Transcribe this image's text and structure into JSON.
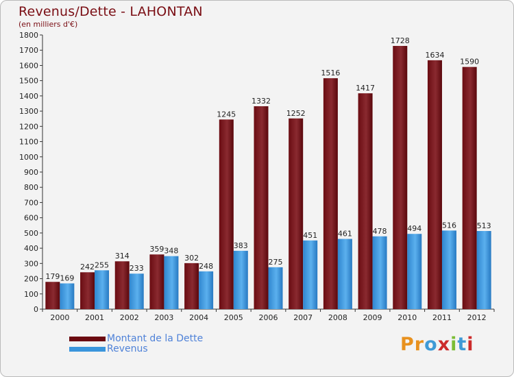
{
  "title": "Revenus/Dette - LAHONTAN",
  "subtitle": "(en milliers d'€)",
  "colors": {
    "debt": "#7a1016",
    "revenue": "#3a95dc",
    "title": "#7a0e14",
    "legend_text": "#4f82d8"
  },
  "legend": [
    {
      "label": "Montant de la Dette",
      "color": "#6b0a10"
    },
    {
      "label": "Revenus",
      "color": "#3a95dc"
    }
  ],
  "logo": {
    "letters": [
      "P",
      "r",
      "o",
      "x",
      "i",
      "t",
      "i"
    ],
    "colors": [
      "#e8911e",
      "#e8911e",
      "#3f9ad6",
      "#cc2b2b",
      "#7bbd34",
      "#3f9ad6",
      "#cc2b2b"
    ]
  },
  "chart_data": {
    "type": "bar",
    "title": "Revenus/Dette - LAHONTAN",
    "ylabel": "(en milliers d'€)",
    "xlabel": "",
    "categories": [
      "2000",
      "2001",
      "2002",
      "2003",
      "2004",
      "2005",
      "2006",
      "2007",
      "2008",
      "2009",
      "2010",
      "2011",
      "2012"
    ],
    "series": [
      {
        "name": "Montant de la Dette",
        "values": [
          179,
          242,
          314,
          359,
          302,
          1245,
          1332,
          1252,
          1516,
          1417,
          1728,
          1634,
          1590
        ]
      },
      {
        "name": "Revenus",
        "values": [
          169,
          255,
          233,
          348,
          248,
          383,
          275,
          451,
          461,
          478,
          494,
          516,
          513
        ]
      }
    ],
    "ylim": [
      0,
      1800
    ],
    "yticks": [
      0,
      100,
      200,
      300,
      400,
      500,
      600,
      700,
      800,
      900,
      1000,
      1100,
      1200,
      1300,
      1400,
      1500,
      1600,
      1700,
      1800
    ],
    "grid": false,
    "legend_position": "bottom-left"
  }
}
